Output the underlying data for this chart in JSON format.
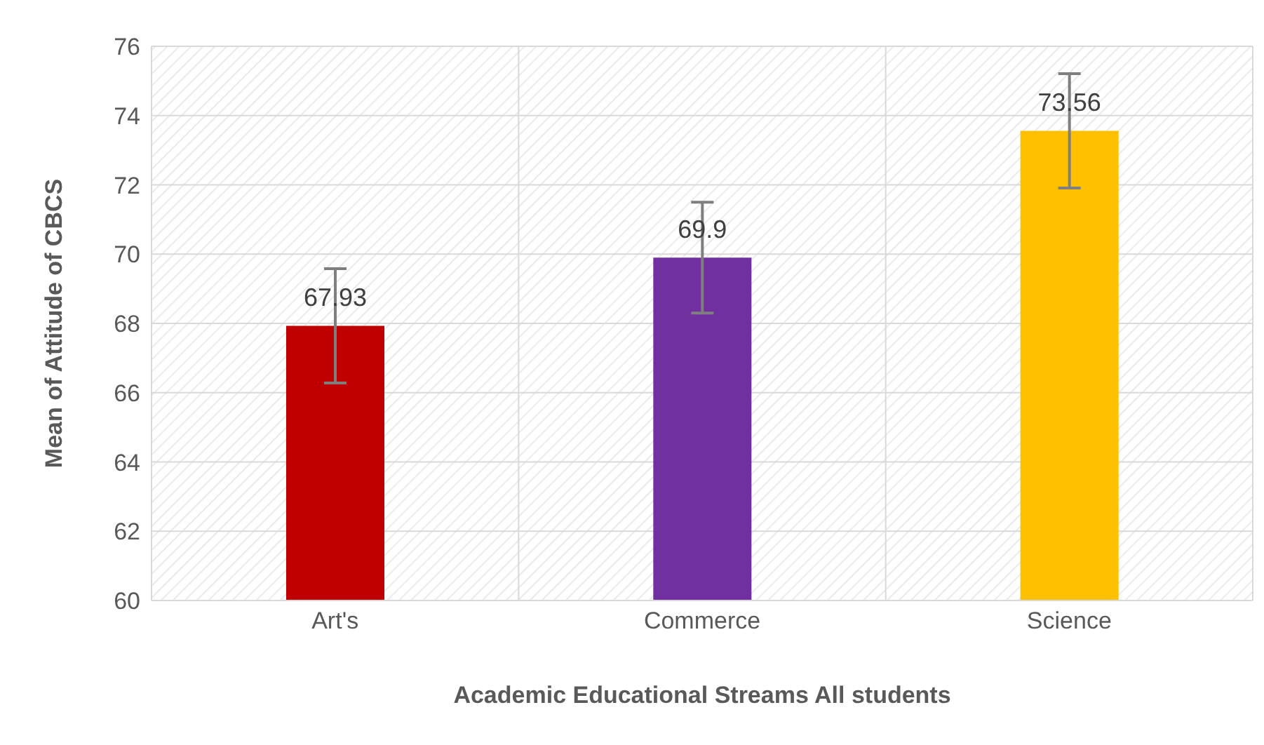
{
  "chart_data": {
    "type": "bar",
    "xlabel": "Academic Educational Streams All students",
    "ylabel": "Mean of Attitude of CBCS",
    "categories": [
      "Art's",
      "Commerce",
      "Science"
    ],
    "values": [
      67.93,
      69.9,
      73.56
    ],
    "colors": [
      "#c00000",
      "#7030a0",
      "#ffc000"
    ],
    "errors": [
      1.65,
      1.6,
      1.65
    ],
    "ylim": [
      60,
      76
    ],
    "yticks": [
      60,
      62,
      64,
      66,
      68,
      70,
      72,
      74,
      76
    ],
    "grid": true,
    "data_labels": true
  }
}
